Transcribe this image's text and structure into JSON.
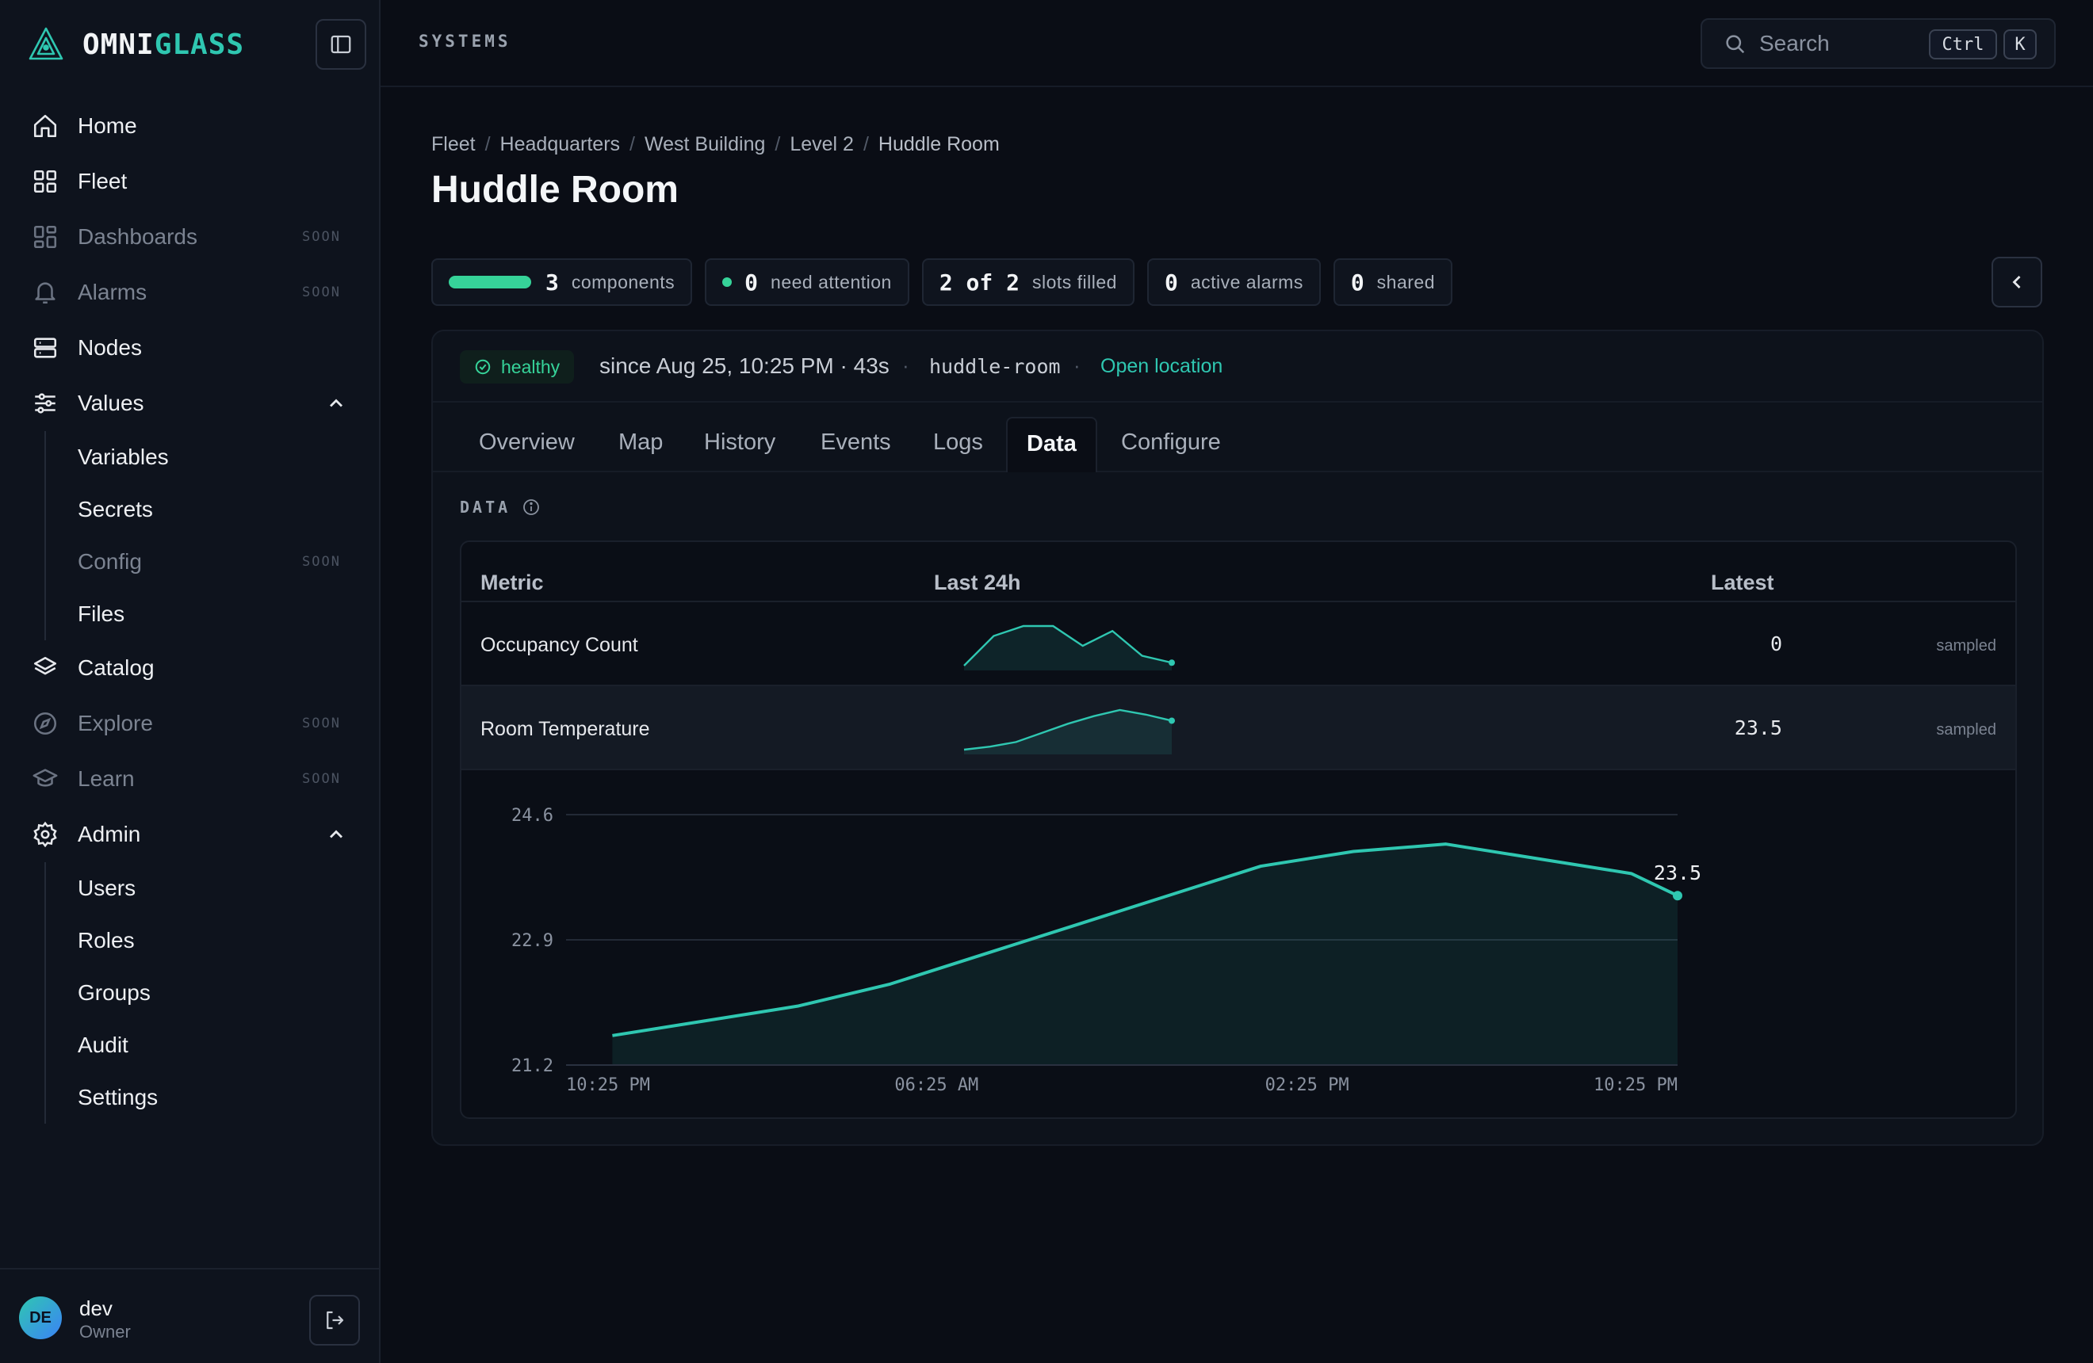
{
  "brand": {
    "part1": "OMNI",
    "part2": "GLASS"
  },
  "sidebar": {
    "items": [
      {
        "label": "Home",
        "icon": "home-icon"
      },
      {
        "label": "Fleet",
        "icon": "grid-icon"
      },
      {
        "label": "Dashboards",
        "icon": "dashboard-icon",
        "badge": "SOON"
      },
      {
        "label": "Alarms",
        "icon": "bell-icon",
        "badge": "SOON"
      },
      {
        "label": "Nodes",
        "icon": "server-icon"
      },
      {
        "label": "Values",
        "icon": "sliders-icon",
        "expanded": true,
        "children": [
          {
            "label": "Variables"
          },
          {
            "label": "Secrets"
          },
          {
            "label": "Config",
            "badge": "SOON"
          },
          {
            "label": "Files"
          }
        ]
      },
      {
        "label": "Catalog",
        "icon": "layers-icon"
      },
      {
        "label": "Explore",
        "icon": "compass-icon",
        "badge": "SOON"
      },
      {
        "label": "Learn",
        "icon": "graduation-cap-icon",
        "badge": "SOON"
      },
      {
        "label": "Admin",
        "icon": "gear-icon",
        "expanded": true,
        "children": [
          {
            "label": "Users"
          },
          {
            "label": "Roles"
          },
          {
            "label": "Groups"
          },
          {
            "label": "Audit"
          },
          {
            "label": "Settings"
          }
        ]
      }
    ]
  },
  "user": {
    "initials": "DE",
    "name": "dev",
    "role": "Owner"
  },
  "topbar": {
    "title": "SYSTEMS",
    "search": {
      "placeholder": "Search",
      "key1": "Ctrl",
      "key2": "K"
    }
  },
  "breadcrumb": [
    "Fleet",
    "Headquarters",
    "West Building",
    "Level 2",
    "Huddle Room"
  ],
  "page": {
    "title": "Huddle Room"
  },
  "stats": {
    "components": {
      "value": "3",
      "label": "components"
    },
    "attention": {
      "value": "0",
      "label": "need attention"
    },
    "slots": {
      "value": "2 of 2",
      "label": "slots filled"
    },
    "alarms": {
      "value": "0",
      "label": "active alarms"
    },
    "shared": {
      "value": "0",
      "label": "shared"
    }
  },
  "status": {
    "state": "healthy",
    "since": "since Aug 25, 10:25 PM · 43s",
    "slug": "huddle-room",
    "link": "Open location"
  },
  "tabs": [
    "Overview",
    "Map",
    "History",
    "Events",
    "Logs",
    "Data",
    "Configure"
  ],
  "active_tab": "Data",
  "data_section": {
    "label": "DATA",
    "columns": {
      "metric": "Metric",
      "last24h": "Last 24h",
      "latest": "Latest"
    },
    "rows": [
      {
        "metric": "Occupancy Count",
        "latest": "0",
        "source": "sampled",
        "spark": [
          0,
          3,
          4,
          4,
          2,
          3.5,
          1,
          0.3
        ]
      },
      {
        "metric": "Room Temperature",
        "latest": "23.5",
        "source": "sampled",
        "spark": [
          21.6,
          21.8,
          22.1,
          22.7,
          23.3,
          23.8,
          24.2,
          23.9,
          23.5
        ]
      }
    ]
  },
  "colors": {
    "accent": "#2fc7b1",
    "healthy": "#36d399",
    "background": "#0a0d15"
  },
  "chart_data": {
    "type": "area",
    "title": "",
    "series": [
      {
        "name": "Room Temperature",
        "x": [
          "11:25 PM",
          "01:25 AM",
          "03:25 AM",
          "05:25 AM",
          "07:25 AM",
          "09:25 AM",
          "11:25 AM",
          "01:25 PM",
          "03:25 PM",
          "05:25 PM",
          "07:25 PM",
          "09:25 PM",
          "10:25 PM"
        ],
        "values": [
          21.6,
          21.8,
          22.0,
          22.3,
          22.7,
          23.1,
          23.5,
          23.9,
          24.1,
          24.2,
          24.0,
          23.8,
          23.5
        ]
      }
    ],
    "x_ticks": [
      "10:25 PM",
      "06:25 AM",
      "02:25 PM",
      "10:25 PM"
    ],
    "x_range_hours": [
      0,
      24
    ],
    "y_ticks": [
      "21.2",
      "22.9",
      "24.6"
    ],
    "ylim": [
      21.2,
      24.6
    ],
    "last_label": "23.5",
    "grid": true
  }
}
